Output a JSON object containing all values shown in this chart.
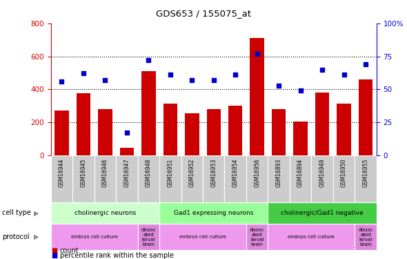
{
  "title": "GDS653 / 155075_at",
  "samples": [
    "GSM16944",
    "GSM16945",
    "GSM16946",
    "GSM16947",
    "GSM16948",
    "GSM16951",
    "GSM16952",
    "GSM16953",
    "GSM16954",
    "GSM16956",
    "GSM16893",
    "GSM16894",
    "GSM16949",
    "GSM16950",
    "GSM16955"
  ],
  "counts": [
    270,
    375,
    280,
    45,
    510,
    315,
    255,
    280,
    300,
    710,
    280,
    205,
    380,
    315,
    460
  ],
  "percentile_ranks": [
    56,
    62,
    57,
    17,
    72,
    61,
    57,
    57,
    61,
    77,
    53,
    49,
    65,
    61,
    69
  ],
  "cell_types": [
    {
      "label": "cholinergic neurons",
      "start": 0,
      "end": 5,
      "color": "#ccffcc"
    },
    {
      "label": "Gad1 expressing neurons",
      "start": 5,
      "end": 10,
      "color": "#99ff99"
    },
    {
      "label": "cholinergic/Gad1 negative",
      "start": 10,
      "end": 15,
      "color": "#44cc44"
    }
  ],
  "protocols": [
    {
      "label": "embryo cell culture",
      "start": 0,
      "end": 4,
      "color": "#ee88ee"
    },
    {
      "label": "dissoc\nated\nlarval\nbrain",
      "start": 4,
      "end": 5,
      "color": "#dd66dd"
    },
    {
      "label": "embryo cell culture",
      "start": 5,
      "end": 9,
      "color": "#ee88ee"
    },
    {
      "label": "dissoc\nated\nlarval\nbrain",
      "start": 9,
      "end": 10,
      "color": "#dd66dd"
    },
    {
      "label": "embryo cell culture",
      "start": 10,
      "end": 14,
      "color": "#ee88ee"
    },
    {
      "label": "dissoc\nated\nlarval\nbrain",
      "start": 14,
      "end": 15,
      "color": "#dd66dd"
    }
  ],
  "bar_color": "#cc0000",
  "dot_color": "#0000cc",
  "ylim_left": [
    0,
    800
  ],
  "ylim_right": [
    0,
    100
  ],
  "yticks_left": [
    0,
    200,
    400,
    600,
    800
  ],
  "yticks_right": [
    0,
    25,
    50,
    75,
    100
  ],
  "ytick_labels_right": [
    "0",
    "25",
    "50",
    "75",
    "100%"
  ],
  "bar_width": 0.65,
  "bar_color_hex": "#cc0000",
  "dot_color_hex": "#0000cc",
  "left_tick_color": "#cc0000",
  "right_tick_color": "#0000cc",
  "sample_box_color": "#cccccc",
  "grid_lines": [
    200,
    400,
    600
  ]
}
